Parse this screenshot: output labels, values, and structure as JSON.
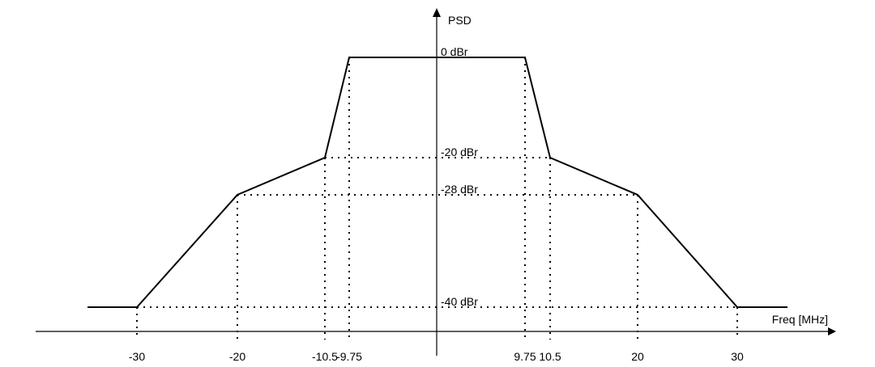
{
  "chart_data": {
    "type": "line",
    "title": "",
    "xlabel": "Freq [MHz]",
    "ylabel": "PSD",
    "series": [
      {
        "x": [
          -35,
          -30,
          -20,
          -10.5,
          -9.75,
          9.75,
          10.5,
          20,
          30,
          35
        ],
        "y": [
          -40,
          -40,
          -28,
          -20,
          0,
          0,
          -20,
          -28,
          -40,
          -40
        ]
      }
    ],
    "x_ticks": [
      {
        "value": -30,
        "label": "-30"
      },
      {
        "value": -20,
        "label": "-20"
      },
      {
        "value": -10.5,
        "label": "-10.5"
      },
      {
        "value": -9.75,
        "label": "-9.75"
      },
      {
        "value": 9.75,
        "label": "9.75"
      },
      {
        "value": 10.5,
        "label": "10.5"
      },
      {
        "value": 20,
        "label": "20"
      },
      {
        "value": 30,
        "label": "30"
      }
    ],
    "level_labels": [
      {
        "value": 0,
        "label": "0 dBr"
      },
      {
        "value": -20,
        "label": "-20 dBr"
      },
      {
        "value": -28,
        "label": "-28 dBr"
      },
      {
        "value": -40,
        "label": "-40 dBr"
      }
    ],
    "grid": false,
    "legend": "none",
    "colors": {
      "line": "#000000",
      "background": "#ffffff"
    }
  }
}
